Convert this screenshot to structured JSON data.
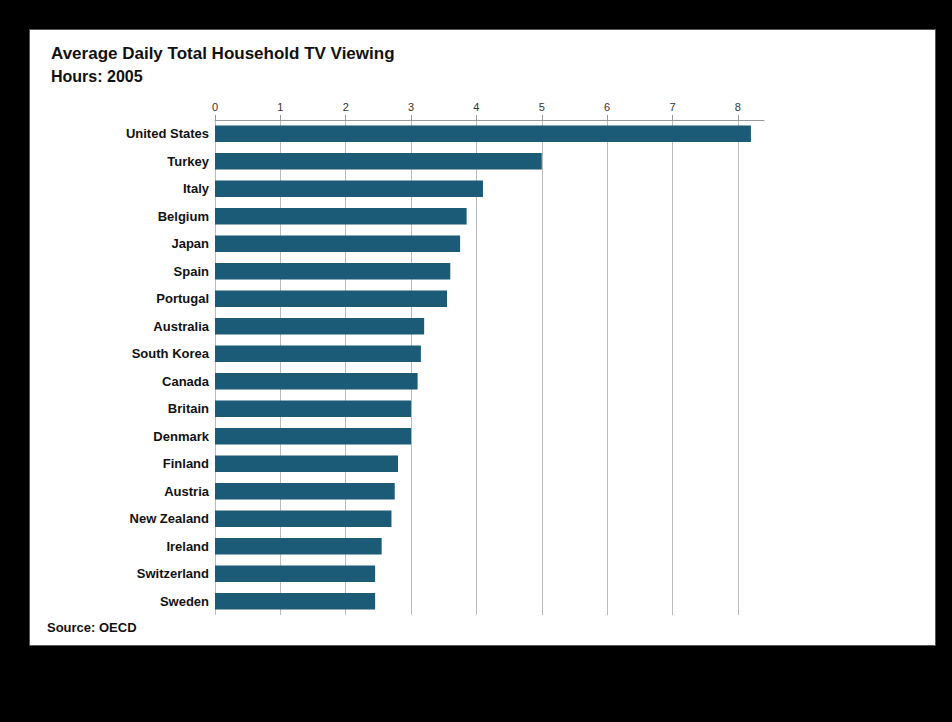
{
  "chart_data": {
    "type": "bar",
    "orientation": "horizontal",
    "title": "Average Daily Total Household TV Viewing",
    "subtitle": "Hours: 2005",
    "source": "Source: OECD",
    "categories": [
      "United States",
      "Turkey",
      "Italy",
      "Belgium",
      "Japan",
      "Spain",
      "Portugal",
      "Australia",
      "South Korea",
      "Canada",
      "Britain",
      "Denmark",
      "Finland",
      "Austria",
      "New Zealand",
      "Ireland",
      "Switzerland",
      "Sweden"
    ],
    "values": [
      8.2,
      5.0,
      4.1,
      3.85,
      3.75,
      3.6,
      3.55,
      3.2,
      3.15,
      3.1,
      3.0,
      3.0,
      2.8,
      2.75,
      2.7,
      2.55,
      2.45,
      2.45
    ],
    "color": "#1b5b78",
    "xlim": [
      0,
      8.4
    ],
    "xticks": [
      0,
      1,
      2,
      3,
      4,
      5,
      6,
      7,
      8
    ],
    "grid": true
  }
}
